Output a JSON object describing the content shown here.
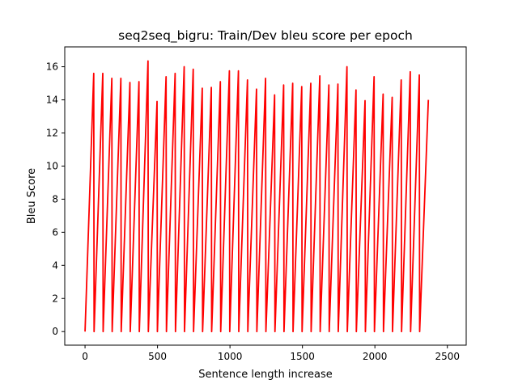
{
  "chart_data": {
    "type": "line",
    "title": "seq2seq_bigru: Train/Dev bleu score per epoch",
    "xlabel": "Sentence length increase",
    "ylabel": "Bleu Score",
    "xlim": [
      -140,
      2630
    ],
    "ylim": [
      -0.82,
      17.2
    ],
    "xticks": [
      0,
      500,
      1000,
      1500,
      2000,
      2500
    ],
    "yticks": [
      0,
      2,
      4,
      6,
      8,
      10,
      12,
      14,
      16
    ],
    "grid": false,
    "legend": "none",
    "series": [
      {
        "color": "#ff0000",
        "segment_period": 62.4,
        "segment_end_offset": 60,
        "peaks": [
          15.6,
          15.6,
          15.3,
          15.3,
          15.05,
          15.1,
          16.35,
          13.9,
          15.4,
          15.6,
          16.0,
          15.85,
          14.7,
          14.75,
          15.1,
          15.75,
          15.75,
          15.2,
          14.65,
          15.3,
          14.3,
          14.9,
          15.0,
          14.8,
          15.0,
          15.45,
          14.9,
          14.95,
          16.0,
          14.6,
          13.95,
          15.4,
          14.35,
          14.15,
          15.2,
          15.7,
          15.5,
          14.0
        ]
      }
    ]
  }
}
